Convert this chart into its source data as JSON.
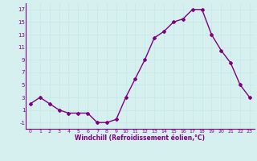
{
  "x": [
    0,
    1,
    2,
    3,
    4,
    5,
    6,
    7,
    8,
    9,
    10,
    11,
    12,
    13,
    14,
    15,
    16,
    17,
    18,
    19,
    20,
    21,
    22,
    23
  ],
  "y": [
    2,
    3,
    2,
    1,
    0.5,
    0.5,
    0.5,
    -1,
    -1,
    -0.5,
    3,
    6,
    9,
    12.5,
    13.5,
    15,
    15.5,
    17,
    17,
    13,
    10.5,
    8.5,
    5,
    3
  ],
  "line_color": "#800080",
  "marker": "D",
  "marker_size": 2.0,
  "bg_color": "#d6f0f0",
  "grid_color": "#b0d8d8",
  "xlabel": "Windchill (Refroidissement éolien,°C)",
  "xlabel_color": "#800080",
  "tick_color": "#800080",
  "yticks": [
    -1,
    1,
    3,
    5,
    7,
    9,
    11,
    13,
    15,
    17
  ],
  "xtick_labels": [
    "0",
    "1",
    "2",
    "3",
    "4",
    "5",
    "6",
    "7",
    "8",
    "9",
    "1011",
    "1213",
    "1415",
    "1617",
    "1819",
    "2021",
    "2223"
  ],
  "ylim": [
    -2,
    18
  ],
  "xlim": [
    -0.5,
    23.5
  ],
  "linewidth": 1.0
}
